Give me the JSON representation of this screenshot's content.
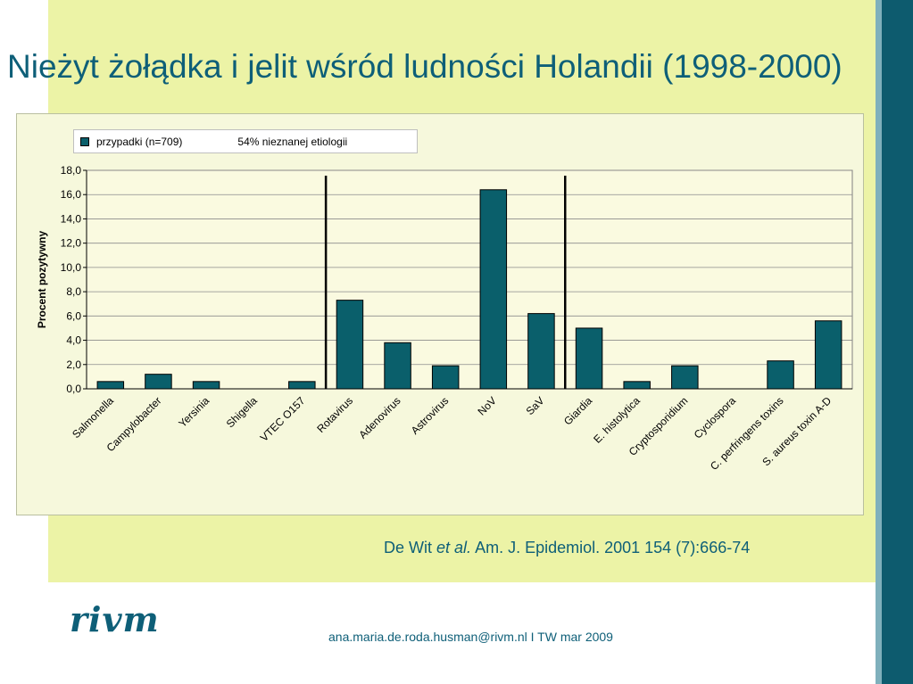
{
  "slide": {
    "title": "Nieżyt żołądka i jelit wśród ludności Holandii (1998-2000)",
    "citation": {
      "author": "De Wit",
      "etal": "et al.",
      "journal": "Am. J. Epidemiol. 2001 154 (7):666-74"
    },
    "logo": "rivm",
    "footer": "ana.maria.de.roda.husman@rivm.nl I TW mar 2009"
  },
  "colors": {
    "bar": "#0a5f6b",
    "accent": "#0e5f78",
    "plot_background": "#fafae0",
    "panel": "#ecf3a6"
  },
  "chart_data": {
    "type": "bar",
    "title": "",
    "xlabel": "",
    "ylabel": "Procent pozytywny",
    "ylim": [
      0,
      18
    ],
    "y_ticks": [
      "0,0",
      "2,0",
      "4,0",
      "6,0",
      "8,0",
      "10,0",
      "12,0",
      "14,0",
      "16,0",
      "18,0"
    ],
    "grid": true,
    "legend_position": "top-left",
    "legend": {
      "series": "przypadki (n=709)",
      "note": "54% nieznanej etiologii"
    },
    "categories": [
      "Salmonella",
      "Campylobacter",
      "Yersinia",
      "Shigella",
      "VTEC O157",
      "Rotavirus",
      "Adenovirus",
      "Astrovirus",
      "NoV",
      "SaV",
      "Giardia",
      "E. histolytica",
      "Cryptosporidium",
      "Cyclospora",
      "C. perfringens toxins",
      "S. aureus toxin A-D"
    ],
    "series": [
      {
        "name": "przypadki (n=709)",
        "values": [
          0.6,
          1.2,
          0.6,
          0.0,
          0.6,
          7.3,
          3.8,
          1.9,
          16.4,
          6.2,
          5.0,
          0.6,
          1.9,
          0.0,
          2.3,
          5.6
        ]
      }
    ],
    "separators_after": [
      "VTEC O157",
      "SaV"
    ]
  }
}
